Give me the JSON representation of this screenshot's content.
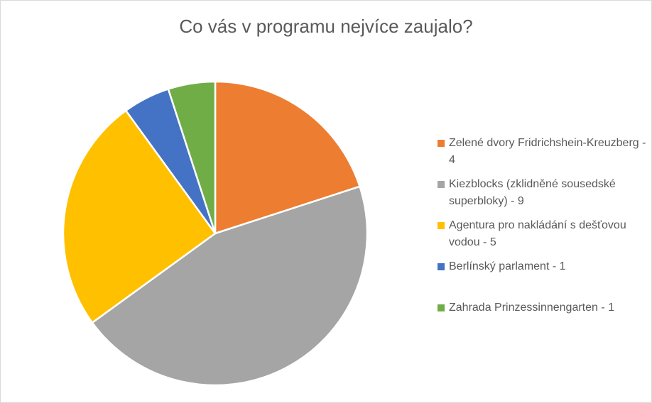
{
  "chart_data": {
    "type": "pie",
    "title": "Co vás v programu nejvíce zaujalo?",
    "legend_position": "right",
    "slices": [
      {
        "label": "Zelené dvory Fridrichshein-Kreuzberg - 4",
        "value": 4,
        "color": "#ED7D31"
      },
      {
        "label": "Kiezblocks (zklidněné sousedské superbloky) - 9",
        "value": 9,
        "color": "#A5A5A5"
      },
      {
        "label": "Agentura pro nakládání s dešťovou vodou - 5",
        "value": 5,
        "color": "#FFC000"
      },
      {
        "label": "Berlínský parlament - 1",
        "value": 1,
        "color": "#4472C4"
      },
      {
        "label": "Zahrada Prinzessinnengarten - 1",
        "value": 1,
        "color": "#70AD47"
      }
    ]
  }
}
